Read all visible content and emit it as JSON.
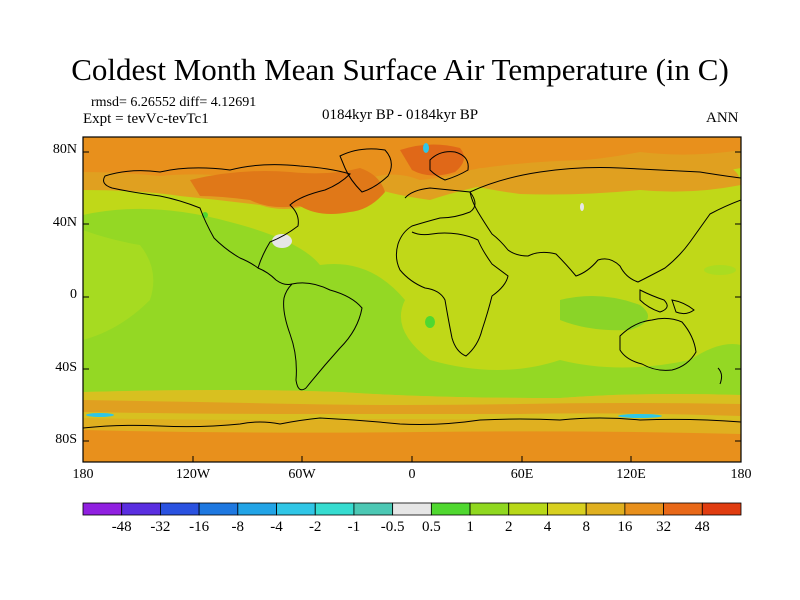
{
  "header": {
    "title": "Coldest Month Mean Surface Air Temperature (in C)",
    "stats": "rmsd= 6.26552 diff= 4.12691",
    "experiment": "Expt = tevVc-tevTc1",
    "period": "0184kyr BP - 0184kyr BP",
    "season": "ANN"
  },
  "map": {
    "projection": "cylindrical equidistant",
    "lon_range": [
      -180,
      180
    ],
    "lat_range": [
      -90,
      90
    ],
    "lat_ticks": [
      "80N",
      "40N",
      "0",
      "40S",
      "80S"
    ],
    "lon_ticks": [
      "180",
      "120W",
      "60W",
      "0",
      "60E",
      "120E",
      "180"
    ],
    "field": "surface air temperature difference, coldest month",
    "regions": [
      {
        "name": "global ocean background",
        "level": "2 to 4"
      },
      {
        "name": "Arctic and northern Eurasia",
        "level": "16 to 32"
      },
      {
        "name": "Canada and Greenland",
        "level": "16 to 32"
      },
      {
        "name": "North Atlantic",
        "level": "16 to 32"
      },
      {
        "name": "Southern Ocean band",
        "level": "16 to 32"
      },
      {
        "name": "Antarctica",
        "level": "8 to 16"
      },
      {
        "name": "tropical and mid-latitude oceans",
        "level": "1 to 2"
      }
    ]
  },
  "colorbar": {
    "labels": [
      "-48",
      "-32",
      "-16",
      "-8",
      "-4",
      "-2",
      "-1",
      "-0.5",
      "0.5",
      "1",
      "2",
      "4",
      "8",
      "16",
      "32",
      "48"
    ],
    "colors": [
      "#9020e0",
      "#5a2ee0",
      "#2a52e0",
      "#1e78e0",
      "#22a4e6",
      "#30c6e6",
      "#36dcd0",
      "#4cc8b4",
      "#e6e6e6",
      "#50d830",
      "#90d820",
      "#b8d818",
      "#d8d020",
      "#e0b020",
      "#e8901c",
      "#e86818",
      "#e03c10"
    ]
  }
}
